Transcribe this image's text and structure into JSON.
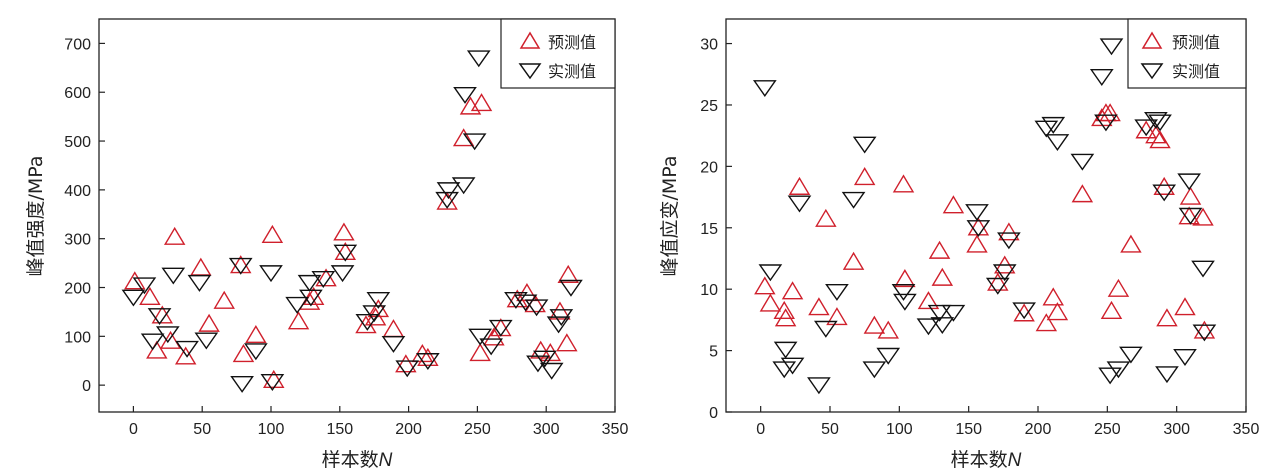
{
  "chart_data": [
    {
      "type": "scatter",
      "xlabel": "样本数",
      "xlabel_italic_suffix": "N",
      "ylabel": "峰值强度/MPa",
      "xlim": [
        -25,
        350
      ],
      "ylim": [
        -55,
        750
      ],
      "xticks": [
        0,
        50,
        100,
        150,
        200,
        250,
        300,
        350
      ],
      "yticks": [
        0,
        100,
        200,
        300,
        400,
        500,
        600,
        700
      ],
      "legend_position": "top-right",
      "series": [
        {
          "name": "预测值",
          "marker": "triangle-up",
          "color": "#d0202c",
          "points": [
            [
              1,
              212
            ],
            [
              12,
              180
            ],
            [
              17,
              70
            ],
            [
              21,
              142
            ],
            [
              27,
              90
            ],
            [
              30,
              303
            ],
            [
              38,
              58
            ],
            [
              49,
              240
            ],
            [
              55,
              125
            ],
            [
              66,
              172
            ],
            [
              78,
              245
            ],
            [
              80,
              63
            ],
            [
              89,
              102
            ],
            [
              101,
              307
            ],
            [
              102,
              10
            ],
            [
              120,
              130
            ],
            [
              128,
              170
            ],
            [
              131,
              180
            ],
            [
              140,
              218
            ],
            [
              153,
              312
            ],
            [
              154,
              272
            ],
            [
              169,
              122
            ],
            [
              176,
              138
            ],
            [
              178,
              155
            ],
            [
              189,
              114
            ],
            [
              198,
              42
            ],
            [
              210,
              63
            ],
            [
              214,
              55
            ],
            [
              228,
              375
            ],
            [
              240,
              505
            ],
            [
              245,
              570
            ],
            [
              252,
              65
            ],
            [
              253,
              577
            ],
            [
              262,
              97
            ],
            [
              267,
              116
            ],
            [
              279,
              175
            ],
            [
              286,
              188
            ],
            [
              292,
              165
            ],
            [
              296,
              70
            ],
            [
              303,
              65
            ],
            [
              310,
              150
            ],
            [
              315,
              85
            ],
            [
              316,
              225
            ]
          ]
        },
        {
          "name": "实测值",
          "marker": "triangle-down",
          "color": "#111111",
          "points": [
            [
              0,
              180
            ],
            [
              8,
              205
            ],
            [
              14,
              90
            ],
            [
              19,
              142
            ],
            [
              25,
              105
            ],
            [
              29,
              225
            ],
            [
              39,
              75
            ],
            [
              48,
              210
            ],
            [
              53,
              92
            ],
            [
              78,
              245
            ],
            [
              79,
              3
            ],
            [
              89,
              70
            ],
            [
              100,
              230
            ],
            [
              101,
              7
            ],
            [
              119,
              165
            ],
            [
              128,
              210
            ],
            [
              129,
              180
            ],
            [
              138,
              218
            ],
            [
              152,
              230
            ],
            [
              154,
              272
            ],
            [
              170,
              130
            ],
            [
              175,
              148
            ],
            [
              178,
              175
            ],
            [
              189,
              85
            ],
            [
              199,
              35
            ],
            [
              214,
              50
            ],
            [
              228,
              380
            ],
            [
              229,
              400
            ],
            [
              240,
              410
            ],
            [
              241,
              595
            ],
            [
              248,
              500
            ],
            [
              251,
              670
            ],
            [
              252,
              100
            ],
            [
              260,
              80
            ],
            [
              267,
              118
            ],
            [
              278,
              175
            ],
            [
              285,
              170
            ],
            [
              293,
              160
            ],
            [
              294,
              45
            ],
            [
              299,
              55
            ],
            [
              304,
              30
            ],
            [
              309,
              125
            ],
            [
              311,
              140
            ],
            [
              318,
              200
            ]
          ]
        }
      ]
    },
    {
      "type": "scatter",
      "xlabel": "样本数",
      "xlabel_italic_suffix": "N",
      "ylabel": "峰值应变/MPa",
      "xlim": [
        -25,
        350
      ],
      "ylim": [
        0,
        32
      ],
      "xticks": [
        0,
        50,
        100,
        150,
        200,
        250,
        300,
        350
      ],
      "yticks": [
        0,
        5,
        10,
        15,
        20,
        25,
        30
      ],
      "legend_position": "top-right",
      "series": [
        {
          "name": "预测值",
          "marker": "triangle-up",
          "color": "#d0202c",
          "points": [
            [
              3,
              10.2
            ],
            [
              7,
              8.8
            ],
            [
              17,
              8.2
            ],
            [
              18,
              7.6
            ],
            [
              23,
              9.8
            ],
            [
              28,
              18.3
            ],
            [
              42,
              8.5
            ],
            [
              47,
              15.7
            ],
            [
              55,
              7.7
            ],
            [
              67,
              12.2
            ],
            [
              75,
              19.1
            ],
            [
              82,
              7.0
            ],
            [
              92,
              6.6
            ],
            [
              103,
              18.5
            ],
            [
              104,
              10.8
            ],
            [
              121,
              9.0
            ],
            [
              129,
              13.1
            ],
            [
              131,
              10.9
            ],
            [
              139,
              16.8
            ],
            [
              156,
              13.6
            ],
            [
              157,
              15.0
            ],
            [
              171,
              10.5
            ],
            [
              176,
              11.9
            ],
            [
              179,
              14.6
            ],
            [
              190,
              8.0
            ],
            [
              206,
              7.2
            ],
            [
              211,
              9.3
            ],
            [
              214,
              8.1
            ],
            [
              232,
              17.7
            ],
            [
              246,
              23.9
            ],
            [
              249,
              24.3
            ],
            [
              252,
              24.3
            ],
            [
              253,
              8.2
            ],
            [
              258,
              10.0
            ],
            [
              267,
              13.6
            ],
            [
              278,
              22.9
            ],
            [
              285,
              22.5
            ],
            [
              288,
              22.1
            ],
            [
              291,
              18.3
            ],
            [
              293,
              7.6
            ],
            [
              306,
              8.5
            ],
            [
              309,
              15.9
            ],
            [
              310,
              17.5
            ],
            [
              319,
              15.8
            ],
            [
              320,
              6.6
            ]
          ]
        },
        {
          "name": "实测值",
          "marker": "triangle-down",
          "color": "#111111",
          "points": [
            [
              3,
              26.4
            ],
            [
              7,
              11.4
            ],
            [
              17,
              3.5
            ],
            [
              18,
              5.1
            ],
            [
              23,
              3.8
            ],
            [
              28,
              17.0
            ],
            [
              42,
              2.2
            ],
            [
              47,
              6.8
            ],
            [
              55,
              9.8
            ],
            [
              67,
              17.3
            ],
            [
              75,
              21.8
            ],
            [
              82,
              3.5
            ],
            [
              92,
              4.6
            ],
            [
              103,
              9.8
            ],
            [
              104,
              9.0
            ],
            [
              121,
              7.0
            ],
            [
              129,
              8.1
            ],
            [
              131,
              7.1
            ],
            [
              139,
              8.1
            ],
            [
              156,
              16.3
            ],
            [
              157,
              15.0
            ],
            [
              171,
              10.3
            ],
            [
              176,
              11.4
            ],
            [
              179,
              14.0
            ],
            [
              190,
              8.3
            ],
            [
              206,
              23.1
            ],
            [
              211,
              23.4
            ],
            [
              214,
              22.0
            ],
            [
              232,
              20.4
            ],
            [
              246,
              27.3
            ],
            [
              249,
              23.6
            ],
            [
              252,
              3.0
            ],
            [
              253,
              29.8
            ],
            [
              258,
              3.5
            ],
            [
              267,
              4.7
            ],
            [
              278,
              23.2
            ],
            [
              285,
              23.8
            ],
            [
              288,
              23.6
            ],
            [
              291,
              17.9
            ],
            [
              293,
              3.1
            ],
            [
              306,
              4.5
            ],
            [
              309,
              18.8
            ],
            [
              310,
              16.0
            ],
            [
              319,
              11.7
            ],
            [
              320,
              6.5
            ]
          ]
        }
      ]
    }
  ]
}
